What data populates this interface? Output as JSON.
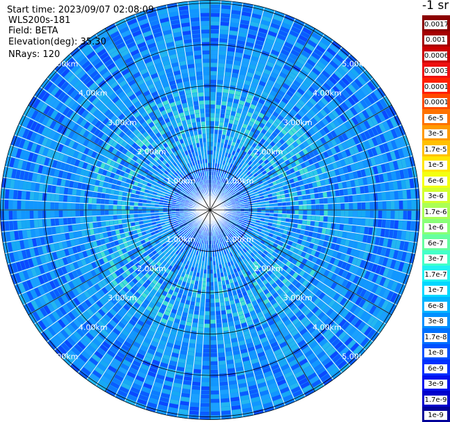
{
  "info": {
    "start_time": "Start time: 2023/09/07 02:08:09",
    "instrument": "WLS200s-181",
    "field": "Field: BETA",
    "elevation": "Elevation(deg): 35.30",
    "nrays": "NRays: 120"
  },
  "chart_data": {
    "type": "heatmap",
    "projection": "polar (PPI scan)",
    "field": "BETA",
    "elevation_deg": 35.3,
    "n_rays": 120,
    "range_rings_km": [
      1.0,
      2.0,
      3.0,
      4.0,
      5.0
    ],
    "ring_labels": [
      "1.00km",
      "2.00km",
      "3.00km",
      "4.00km",
      "5.00km"
    ],
    "spokes_deg": [
      0,
      30,
      60,
      90,
      120,
      150,
      180,
      210,
      240,
      270,
      300,
      330
    ],
    "dominant_color_scale": "log",
    "colorbar": {
      "unit_label": "-1 sr",
      "ticks": [
        "0.0017",
        "0.001",
        "0.0006",
        "0.0003",
        "0.00017",
        "0.0001",
        "6e-5",
        "3e-5",
        "1.7e-5",
        "1e-5",
        "6e-6",
        "3e-6",
        "1.7e-6",
        "1e-6",
        "6e-7",
        "3e-7",
        "1.7e-7",
        "1e-7",
        "6e-8",
        "3e-8",
        "1.7e-8",
        "1e-8",
        "6e-9",
        "3e-9",
        "1.7e-9",
        "1e-9"
      ],
      "colors": [
        "#8b0000",
        "#a50000",
        "#cc0000",
        "#ee1010",
        "#ff2000",
        "#ff4a00",
        "#ff7200",
        "#ff9a00",
        "#ffc000",
        "#ffe600",
        "#f4ff10",
        "#d2ff2e",
        "#aaff55",
        "#88ff77",
        "#66ffa0",
        "#44ffc8",
        "#22f2f2",
        "#00d8ff",
        "#00b4ff",
        "#0090ff",
        "#0070ff",
        "#0050ff",
        "#0030ff",
        "#0010ee",
        "#0000cc",
        "#000099"
      ]
    }
  }
}
